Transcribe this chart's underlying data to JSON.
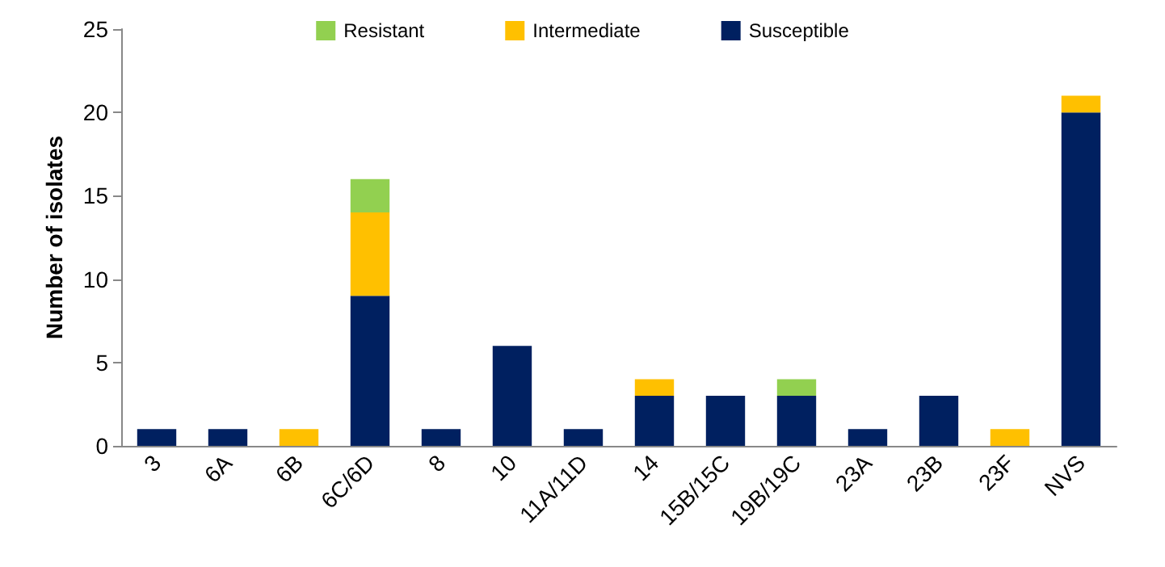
{
  "chart_data": {
    "type": "bar",
    "stacked": true,
    "ylabel": "Number of isolates",
    "categories": [
      "3",
      "6A",
      "6B",
      "6C/6D",
      "8",
      "10",
      "11A/11D",
      "14",
      "15B/15C",
      "19B/19C",
      "23A",
      "23B",
      "23F",
      "NVS"
    ],
    "series": [
      {
        "name": "Susceptible",
        "color": "#002060",
        "values": [
          1,
          1,
          0,
          9,
          1,
          6,
          1,
          3,
          3,
          3,
          1,
          3,
          0,
          20
        ]
      },
      {
        "name": "Intermediate",
        "color": "#ffc000",
        "values": [
          0,
          0,
          1,
          5,
          0,
          0,
          0,
          1,
          0,
          0,
          0,
          0,
          1,
          1
        ]
      },
      {
        "name": "Resistant",
        "color": "#92d050",
        "values": [
          0,
          0,
          0,
          2,
          0,
          0,
          0,
          0,
          0,
          1,
          0,
          0,
          0,
          0
        ]
      }
    ],
    "ylim": [
      0,
      25
    ],
    "yticks": [
      0,
      5,
      10,
      15,
      20,
      25
    ],
    "grid": false,
    "legend": "top"
  }
}
